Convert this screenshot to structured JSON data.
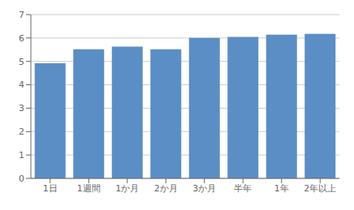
{
  "chart_data": {
    "type": "bar",
    "categories": [
      "1日",
      "1週間",
      "1か月",
      "2か月",
      "3か月",
      "半年",
      "1年",
      "2年以上"
    ],
    "values": [
      4.92,
      5.52,
      5.63,
      5.52,
      6.0,
      6.05,
      6.14,
      6.18
    ],
    "color": "#5b8ec4",
    "ylim": [
      0,
      7
    ],
    "yticks": [
      0,
      1,
      2,
      3,
      4,
      5,
      6,
      7
    ],
    "grid": true
  }
}
